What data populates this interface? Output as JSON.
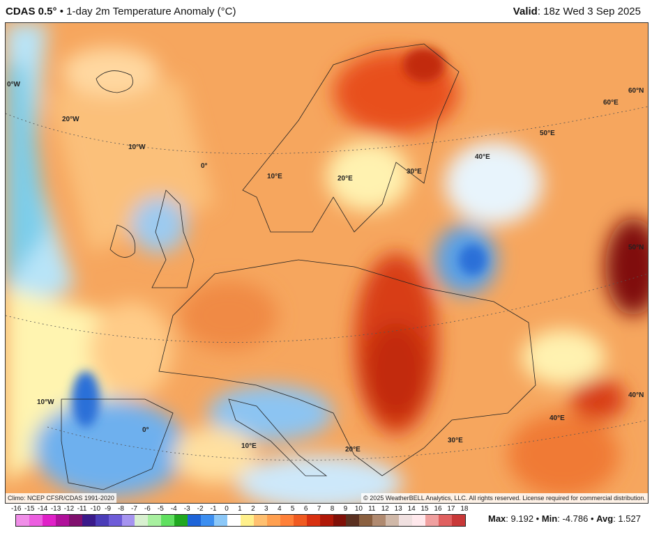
{
  "header": {
    "model": "CDAS 0.5°",
    "separator": "•",
    "title": "1-day 2m Temperature Anomaly (°C)",
    "valid_label": "Valid",
    "valid_value": ": 18z Wed 3 Sep 2025"
  },
  "map": {
    "grid_labels": [
      "0°W",
      "20°W",
      "10°W",
      "0°",
      "10°E",
      "20°E",
      "30°E",
      "40°E",
      "50°E",
      "60°E",
      "60°N",
      "50°N",
      "40°N",
      "40°E",
      "30°E",
      "20°E",
      "10°E",
      "0°",
      "10°W"
    ],
    "climo_note": "Climo: NCEP CFSR/CDAS 1991-2020",
    "copyright": "© 2025 WeatherBELL Analytics, LLC. All rights reserved. License required for commercial distribution.",
    "logo_text": "WeatherBELL"
  },
  "colorbar": {
    "ticks": [
      "-16",
      "-15",
      "-14",
      "-13",
      "-12",
      "-11",
      "-10",
      "-9",
      "-8",
      "-7",
      "-6",
      "-5",
      "-4",
      "-3",
      "-2",
      "-1",
      "0",
      "1",
      "2",
      "3",
      "4",
      "5",
      "6",
      "7",
      "8",
      "9",
      "10",
      "11",
      "12",
      "13",
      "14",
      "15",
      "16",
      "17",
      "18"
    ],
    "colors": [
      "#f08ee8",
      "#ec5ee0",
      "#e020c8",
      "#b0109a",
      "#80106e",
      "#3a1a8a",
      "#4a3cb8",
      "#6e5cd8",
      "#a694f0",
      "#d8f0d0",
      "#a8f0a0",
      "#60e060",
      "#20a820",
      "#1e64d8",
      "#3c8ef0",
      "#8cc8f8",
      "#ffffff",
      "#fff08c",
      "#ffc070",
      "#ffa050",
      "#ff8038",
      "#f05a20",
      "#d83010",
      "#b01808",
      "#801008",
      "#5a3020",
      "#8a6040",
      "#b08a70",
      "#d0b8a8",
      "#f0e0e0",
      "#ffe8ec",
      "#f0a0a0",
      "#e06060",
      "#c83838"
    ]
  },
  "stats": {
    "max_label": "Max",
    "max_value": ": 9.192",
    "min_label": "Min",
    "min_value": ": -4.786",
    "avg_label": "Avg",
    "avg_value": ": 1.527",
    "sep": " • "
  }
}
